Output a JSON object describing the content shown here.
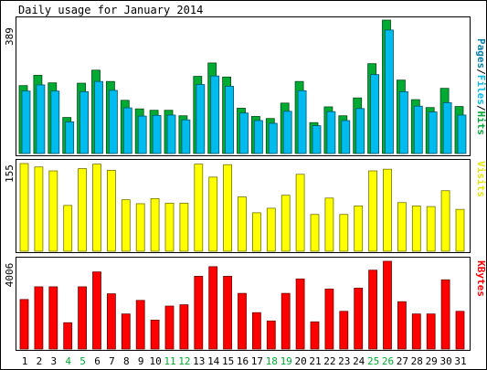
{
  "chart_data": [
    {
      "type": "bar",
      "title": "Daily usage for January 2014",
      "ymax_label": "389",
      "legend": [
        "Pages",
        "Files",
        "Hits"
      ],
      "categories": [
        "1",
        "2",
        "3",
        "4",
        "5",
        "6",
        "7",
        "8",
        "9",
        "10",
        "11",
        "12",
        "13",
        "14",
        "15",
        "16",
        "17",
        "18",
        "19",
        "20",
        "21",
        "22",
        "23",
        "24",
        "25",
        "26",
        "27",
        "28",
        "29",
        "30",
        "31"
      ],
      "weekend_days": [
        "4",
        "5",
        "11",
        "12",
        "18",
        "19",
        "25",
        "26"
      ],
      "ylim": [
        0,
        389
      ],
      "series": [
        {
          "name": "Hits",
          "color": "#00aa33",
          "values": [
            198,
            228,
            206,
            105,
            205,
            243,
            210,
            155,
            130,
            126,
            126,
            110,
            225,
            264,
            223,
            132,
            108,
            102,
            147,
            210,
            90,
            136,
            110,
            162,
            262,
            389,
            214,
            157,
            134,
            190,
            137
          ]
        },
        {
          "name": "Files",
          "color": "#00bbee",
          "values": [
            182,
            200,
            182,
            92,
            180,
            210,
            184,
            133,
            109,
            111,
            112,
            98,
            201,
            226,
            196,
            118,
            96,
            88,
            123,
            183,
            81,
            122,
            96,
            131,
            230,
            360,
            180,
            138,
            121,
            148,
            112
          ]
        },
        {
          "name": "Pages",
          "color": "#0080aa",
          "values": [
            0,
            0,
            0,
            0,
            0,
            0,
            0,
            0,
            0,
            0,
            0,
            0,
            0,
            0,
            0,
            0,
            0,
            0,
            0,
            0,
            0,
            0,
            0,
            0,
            0,
            0,
            0,
            0,
            0,
            0,
            0
          ]
        }
      ]
    },
    {
      "type": "bar",
      "ymax_label": "155",
      "legend": [
        "Visits"
      ],
      "ylim": [
        0,
        155
      ],
      "series": [
        {
          "name": "Visits",
          "color": "#ffff00",
          "values": [
            155,
            149,
            142,
            81,
            146,
            154,
            143,
            91,
            84,
            93,
            85,
            85,
            154,
            131,
            153,
            96,
            68,
            76,
            99,
            136,
            65,
            94,
            65,
            80,
            142,
            145,
            86,
            80,
            79,
            107,
            74
          ]
        }
      ]
    },
    {
      "type": "bar",
      "ymax_label": "4006",
      "legend": [
        "KBytes"
      ],
      "ylim": [
        0,
        4006
      ],
      "series": [
        {
          "name": "KBytes",
          "color": "#ff0000",
          "values": [
            2260,
            2840,
            2840,
            1200,
            2840,
            3520,
            2520,
            1600,
            2220,
            1320,
            1960,
            2020,
            3320,
            3760,
            3320,
            2540,
            1660,
            1280,
            2540,
            3200,
            1240,
            2740,
            1720,
            2780,
            3600,
            4006,
            2160,
            1600,
            1600,
            3160,
            1720
          ]
        }
      ]
    }
  ]
}
